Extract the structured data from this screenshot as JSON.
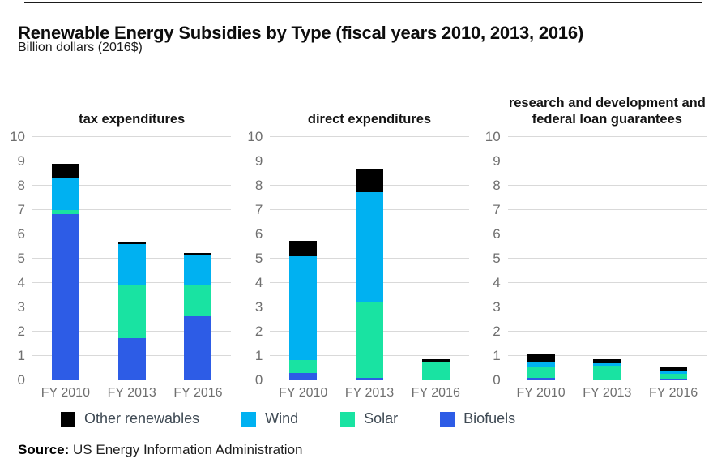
{
  "header": {
    "title": "Renewable Energy Subsidies by Type (fiscal years 2010, 2013, 2016)",
    "subtitle": "Billion dollars (2016$)"
  },
  "source": {
    "label": "Source:",
    "text": "US Energy Information Administration"
  },
  "colors": {
    "other_renewables": "#000000",
    "wind": "#00b1f1",
    "solar": "#19e3a2",
    "biofuels": "#2d5ce6",
    "gridline": "#d9d9d9",
    "axis_text": "#6f6f6f",
    "legend_text": "#3f4a54"
  },
  "legend": [
    {
      "label": "Other renewables",
      "color": "#000000"
    },
    {
      "label": "Wind",
      "color": "#00b1f1"
    },
    {
      "label": "Solar",
      "color": "#19e3a2"
    },
    {
      "label": "Biofuels",
      "color": "#2d5ce6"
    }
  ],
  "chart_data": {
    "type": "bar",
    "stacked": true,
    "title": "Renewable Energy Subsidies by Type (fiscal years 2010, 2013, 2016)",
    "ylabel": "Billion dollars (2016$)",
    "grid": true,
    "legend_position": "bottom",
    "legend_entries": [
      "Other renewables",
      "Wind",
      "Solar",
      "Biofuels"
    ],
    "categories": [
      "FY 2010",
      "FY 2013",
      "FY 2016"
    ],
    "y_axis": {
      "min": 0,
      "max": 10,
      "tick_step": 1,
      "ticks": [
        0,
        1,
        2,
        3,
        4,
        5,
        6,
        7,
        8,
        9,
        10
      ]
    },
    "stack_order_bottom_to_top": [
      "Biofuels",
      "Solar",
      "Wind",
      "Other renewables"
    ],
    "panels": [
      {
        "title": "tax expenditures",
        "series": [
          {
            "name": "Biofuels",
            "values": [
              6.85,
              1.75,
              2.65
            ]
          },
          {
            "name": "Solar",
            "values": [
              0.15,
              2.2,
              1.25
            ]
          },
          {
            "name": "Wind",
            "values": [
              1.35,
              1.65,
              1.25
            ]
          },
          {
            "name": "Other renewables",
            "values": [
              0.55,
              0.1,
              0.1
            ]
          }
        ],
        "totals": [
          8.9,
          5.7,
          5.25
        ]
      },
      {
        "title": "direct expenditures",
        "series": [
          {
            "name": "Biofuels",
            "values": [
              0.3,
              0.1,
              0.0
            ]
          },
          {
            "name": "Solar",
            "values": [
              0.55,
              3.1,
              0.75
            ]
          },
          {
            "name": "Wind",
            "values": [
              4.25,
              4.55,
              0.0
            ]
          },
          {
            "name": "Other renewables",
            "values": [
              0.65,
              0.95,
              0.13
            ]
          }
        ],
        "totals": [
          5.75,
          8.7,
          0.88
        ]
      },
      {
        "title": "research and development and federal loan guarantees",
        "series": [
          {
            "name": "Biofuels",
            "values": [
              0.1,
              0.03,
              0.08
            ]
          },
          {
            "name": "Solar",
            "values": [
              0.45,
              0.56,
              0.2
            ]
          },
          {
            "name": "Wind",
            "values": [
              0.22,
              0.11,
              0.1
            ]
          },
          {
            "name": "Other renewables",
            "values": [
              0.33,
              0.17,
              0.15
            ]
          }
        ],
        "totals": [
          1.1,
          0.87,
          0.53
        ]
      }
    ]
  }
}
